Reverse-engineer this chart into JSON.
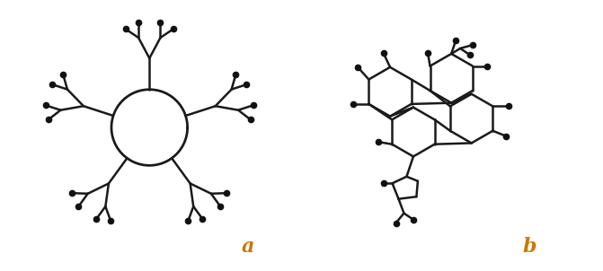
{
  "background_color": "#ffffff",
  "line_color": "#1a1a1a",
  "dot_color": "#111111",
  "line_width": 1.8,
  "dot_size": 4.5,
  "label_a": "a",
  "label_b": "b",
  "label_color": "#cc7700",
  "label_fontsize": 16,
  "fig_width": 6.71,
  "fig_height": 3.02
}
